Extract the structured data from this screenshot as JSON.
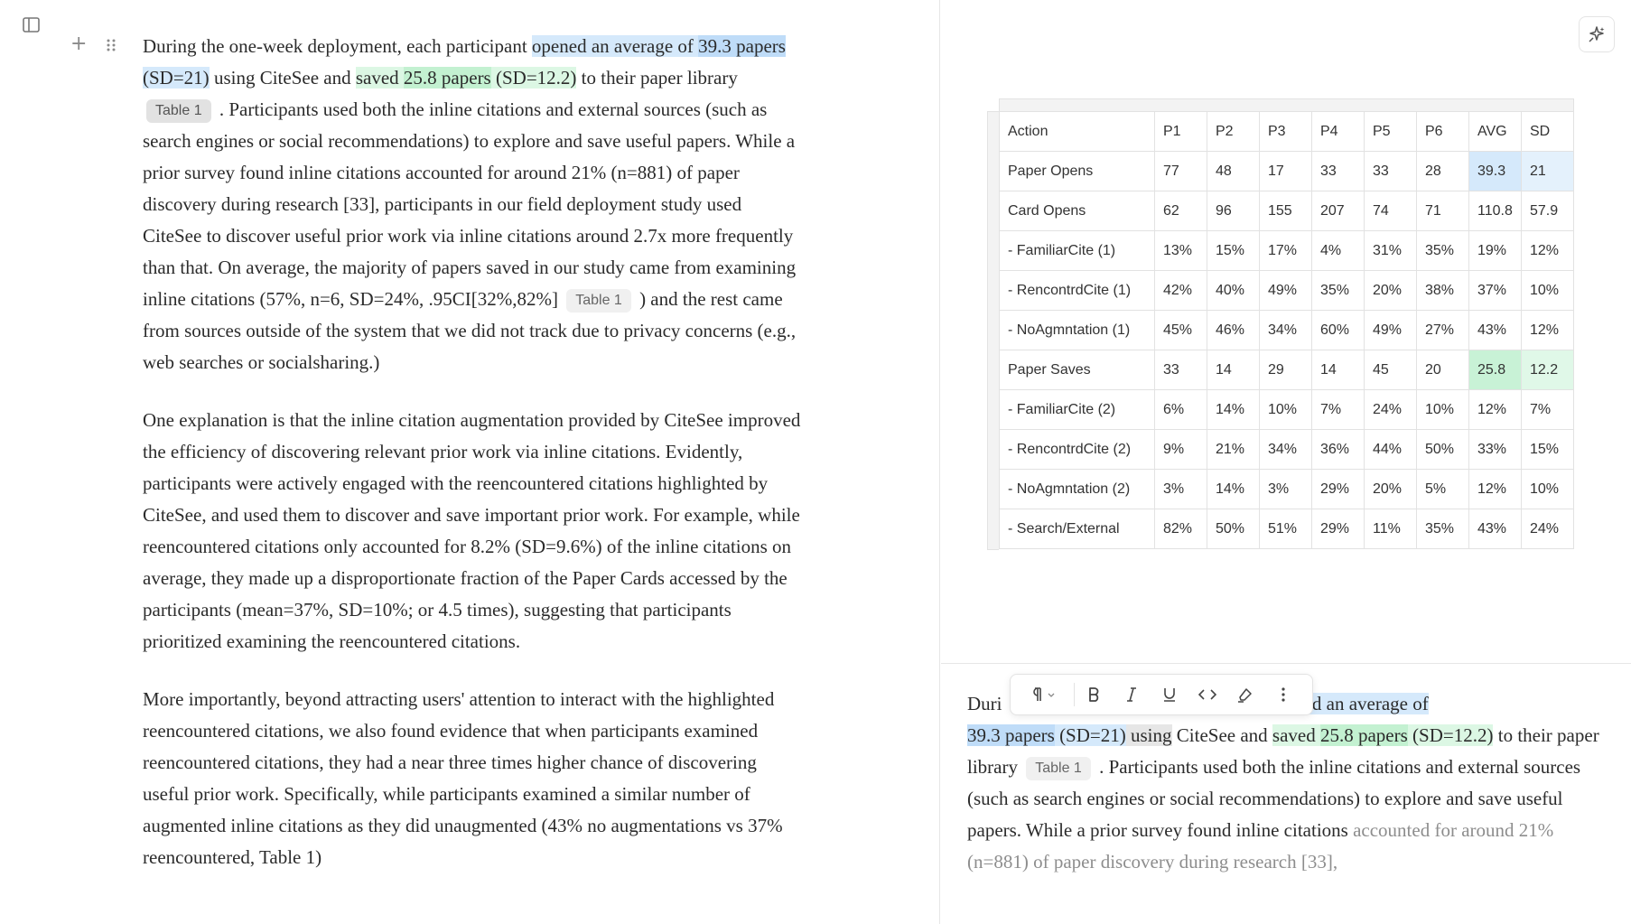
{
  "colors": {
    "highlight_blue": "#d5e9fb",
    "highlight_green": "#c8f2d6",
    "border": "#e2e2e2"
  },
  "icons": [
    "sidebar-toggle-icon",
    "plus-icon",
    "drag-handle-icon",
    "ai-sparkle-icon",
    "paragraph-icon",
    "chevron-down-icon",
    "bold-icon",
    "italic-icon",
    "underline-icon",
    "code-icon",
    "highlighter-icon",
    "more-vertical-icon"
  ],
  "editor": {
    "p1": {
      "s1": "During the one-week deployment, each participant ",
      "hl1": "opened an average of ",
      "hl2": "39.3 papers",
      "s2": " (SD=21)",
      "s3": " using CiteSee and ",
      "hl3": "saved ",
      "hl4": "25.8 papers",
      "s4": " (SD=12.2)",
      "s5": " to their paper library ",
      "chip1": "Table 1",
      "s6": " . Participants used both the inline citations and external sources (such as search engines or social recommendations) to explore and save useful papers. While a prior survey found inline citations accounted for around 21% (n=881) of paper discovery during research [33], participants in our field deployment study used CiteSee to discover useful prior work via inline citations around 2.7x more frequently than that. On average, the majority of papers saved in our study came from examining inline citations (57%, n=6, SD=24%, .95CI[32%,82%] ",
      "chip2": "Table 1",
      "s7": " ) and the rest came from sources outside of the system that we did not track due to privacy concerns (e.g., web searches or socialsharing.)"
    },
    "p2": "One explanation is that the inline citation augmentation provided by CiteSee improved the efficiency of discovering relevant prior work via inline citations. Evidently, participants were actively engaged with the reencountered citations highlighted by CiteSee, and used them to discover and save important prior work. For example, while reencountered citations only accounted for 8.2% (SD=9.6%) of the inline citations on average, they made up a disproportionate fraction of the Paper Cards accessed by the participants (mean=37%, SD=10%; or 4.5 times), suggesting that participants prioritized examining the reencountered citations.",
    "p3": "More importantly, beyond attracting users' attention to interact with the highlighted reencountered citations, we also found evidence that when participants examined reencountered citations, they had a near three times higher chance of discovering useful prior work. Specifically, while participants examined a similar number of augmented inline citations as they did unaugmented (43% no augmentations vs 37% reencountered, Table 1)"
  },
  "table": {
    "headers": [
      "Action",
      "P1",
      "P2",
      "P3",
      "P4",
      "P5",
      "P6",
      "AVG",
      "SD"
    ],
    "rows": [
      [
        "Paper Opens",
        "77",
        "48",
        "17",
        "33",
        "33",
        "28",
        "39.3",
        "21"
      ],
      [
        "Card Opens",
        "62",
        "96",
        "155",
        "207",
        "74",
        "71",
        "110.8",
        "57.9"
      ],
      [
        "- FamiliarCite (1)",
        "13%",
        "15%",
        "17%",
        "4%",
        "31%",
        "35%",
        "19%",
        "12%"
      ],
      [
        "- RencontrdCite (1)",
        "42%",
        "40%",
        "49%",
        "35%",
        "20%",
        "38%",
        "37%",
        "10%"
      ],
      [
        "- NoAgmntation (1)",
        "45%",
        "46%",
        "34%",
        "60%",
        "49%",
        "27%",
        "43%",
        "12%"
      ],
      [
        "Paper Saves",
        "33",
        "14",
        "29",
        "14",
        "45",
        "20",
        "25.8",
        "12.2"
      ],
      [
        "- FamiliarCite (2)",
        "6%",
        "14%",
        "10%",
        "7%",
        "24%",
        "10%",
        "12%",
        "7%"
      ],
      [
        "- RencontrdCite (2)",
        "9%",
        "21%",
        "34%",
        "36%",
        "44%",
        "50%",
        "33%",
        "15%"
      ],
      [
        "- NoAgmntation (2)",
        "3%",
        "14%",
        "3%",
        "29%",
        "20%",
        "5%",
        "12%",
        "10%"
      ],
      [
        "- Search/External",
        "82%",
        "50%",
        "51%",
        "29%",
        "11%",
        "35%",
        "43%",
        "24%"
      ]
    ]
  },
  "preview": {
    "s1a": "Duri",
    "s1b": "rticipant ",
    "hl1": "opened an average of",
    "hl2": "39.3 papers",
    "s2": " (SD=21)",
    "s3sel": " using",
    "s3": " CiteSee and ",
    "hl3": "saved ",
    "hl4": "25.8 papers",
    "s4": " (SD=12.2)",
    "s5": " to their paper library ",
    "chip": "Table 1",
    "s6": " . Participants used both the inline citations and external sources (such as search engines or social recommendations) to explore and save useful papers. While a prior survey found inline citations ",
    "s7": "accounted for around 21% (n=881) of paper discovery during research [33],"
  }
}
